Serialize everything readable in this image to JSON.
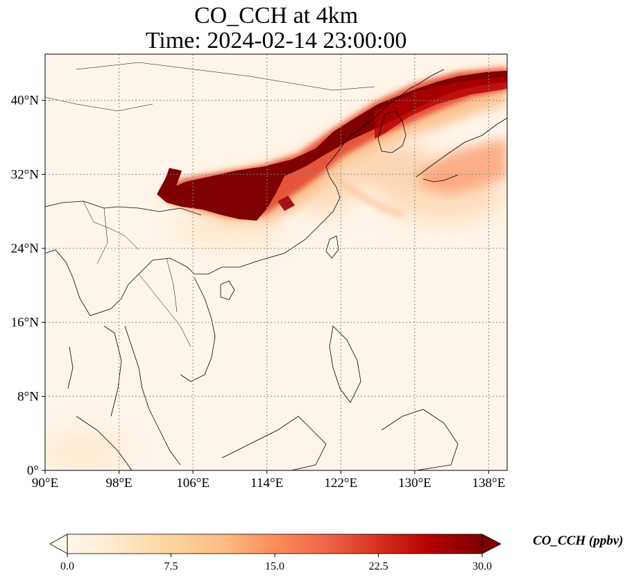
{
  "chart_data": {
    "type": "heatmap",
    "title_line1": "CO_CCH at 4km",
    "title_line2": "Time: 2024-02-14 23:00:00",
    "x_ticks": [
      "90°E",
      "98°E",
      "106°E",
      "114°E",
      "122°E",
      "130°E",
      "138°E"
    ],
    "x_tick_values": [
      90,
      98,
      106,
      114,
      122,
      130,
      138
    ],
    "y_ticks": [
      "0°",
      "8°N",
      "16°N",
      "24°N",
      "32°N",
      "40°N"
    ],
    "y_tick_values": [
      0,
      8,
      16,
      24,
      32,
      40
    ],
    "xlim": [
      90,
      140
    ],
    "ylim": [
      0,
      45
    ],
    "grid": true,
    "colormap": "OrRd",
    "colorbar": {
      "label": "CO_CCH (ppbv)",
      "ticks": [
        "0.0",
        "7.5",
        "15.0",
        "22.5",
        "30.0"
      ],
      "tick_values": [
        0,
        7.5,
        15,
        22.5,
        30
      ],
      "range": [
        0,
        30
      ],
      "extend": "both"
    },
    "plume": {
      "description_points_lonlat_value": [
        [
          102.5,
          31.0,
          30
        ],
        [
          106,
          30.5,
          30
        ],
        [
          110,
          31.5,
          30
        ],
        [
          114,
          32.5,
          30
        ],
        [
          118,
          34.0,
          30
        ],
        [
          122,
          36.0,
          30
        ],
        [
          126,
          38.5,
          30
        ],
        [
          130,
          40.0,
          27
        ],
        [
          134,
          41.5,
          22
        ],
        [
          138,
          42.0,
          18
        ]
      ]
    }
  }
}
